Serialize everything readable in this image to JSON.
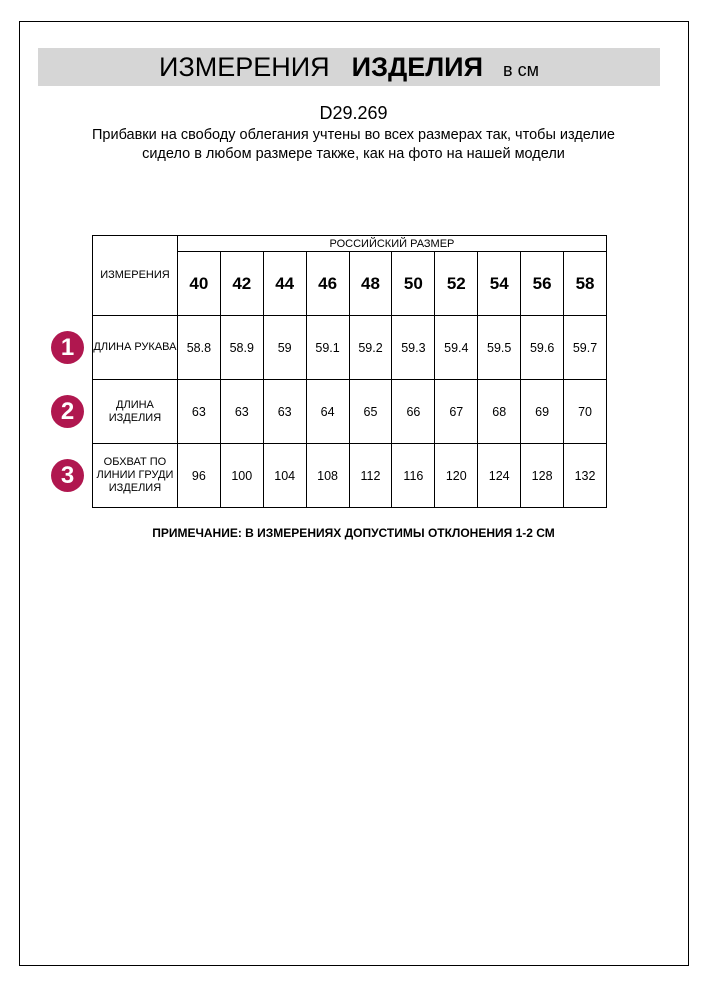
{
  "header": {
    "title_regular": "ИЗМЕРЕНИЯ",
    "title_bold": "ИЗДЕЛИЯ",
    "unit": "в см"
  },
  "product_code": "D29.269",
  "description": "Прибавки на свободу облегания учтены во всех размерах так, чтобы изделие сидело в любом размере также, как на фото на нашей модели",
  "table": {
    "measure_header": "ИЗМЕРЕНИЯ",
    "size_header": "РОССИЙСКИЙ РАЗМЕР",
    "sizes": [
      "40",
      "42",
      "44",
      "46",
      "48",
      "50",
      "52",
      "54",
      "56",
      "58"
    ],
    "rows": [
      {
        "num": "1",
        "label": "ДЛИНА РУКАВА",
        "values": [
          "58.8",
          "58.9",
          "59",
          "59.1",
          "59.2",
          "59.3",
          "59.4",
          "59.5",
          "59.6",
          "59.7"
        ]
      },
      {
        "num": "2",
        "label": "ДЛИНА ИЗДЕЛИЯ",
        "values": [
          "63",
          "63",
          "63",
          "64",
          "65",
          "66",
          "67",
          "68",
          "69",
          "70"
        ]
      },
      {
        "num": "3",
        "label": "ОБХВАТ ПО ЛИНИИ ГРУДИ ИЗДЕЛИЯ",
        "values": [
          "96",
          "100",
          "104",
          "108",
          "112",
          "116",
          "120",
          "124",
          "128",
          "132"
        ]
      }
    ]
  },
  "note": "ПРИМЕЧАНИЕ: В ИЗМЕРЕНИЯХ ДОПУСТИМЫ ОТКЛОНЕНИЯ 1-2 СМ",
  "colors": {
    "badge": "#b0174f",
    "band": "#d6d6d6"
  }
}
